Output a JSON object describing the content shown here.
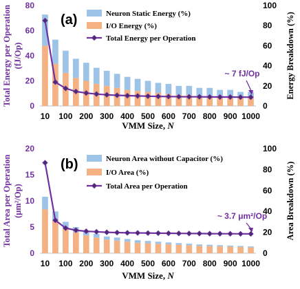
{
  "colors": {
    "bar_top": "#9DC3E6",
    "bar_bottom": "#F4B183",
    "line": "#7030A0",
    "marker": "#4B2C73",
    "left_axis_text": "#7030A0",
    "right_axis_text": "#000000"
  },
  "chart_data": [
    {
      "type": "bar",
      "panel_label": "(a)",
      "x": [
        10,
        50,
        100,
        150,
        200,
        250,
        300,
        350,
        400,
        450,
        500,
        550,
        600,
        650,
        700,
        750,
        800,
        850,
        900,
        950,
        1000
      ],
      "xticks": [
        "10",
        "100",
        "200",
        "300",
        "400",
        "500",
        "600",
        "700",
        "800",
        "900",
        "1000"
      ],
      "xlabel_main": "VMM Size, ",
      "xlabel_var": "N",
      "ylabel_left": "Total Energy per Operation",
      "ylabel_left_unit": "(fJ/Op)",
      "ylim_left": [
        0,
        80
      ],
      "yticks_left": [
        "0",
        "20",
        "40",
        "60",
        "80"
      ],
      "ylabel_right": "Energy Breakdown (%)",
      "ylim_right": [
        0,
        100
      ],
      "yticks_right": [
        "0",
        "20",
        "40",
        "60",
        "80",
        "100"
      ],
      "series": [
        {
          "name": "Neuron Static Energy (%)",
          "kind": "bar-stack-top",
          "values": [
            31,
            24,
            22,
            19,
            18,
            16,
            15,
            14,
            13,
            12,
            11,
            10,
            10,
            9,
            9,
            8,
            8,
            7,
            7,
            6,
            6
          ]
        },
        {
          "name": "I/O Energy (%)",
          "kind": "bar-stack-bottom",
          "values": [
            60,
            42,
            33,
            28,
            25,
            22,
            20,
            18,
            16,
            15,
            14,
            13,
            12,
            11,
            11,
            10,
            10,
            9,
            9,
            8,
            8
          ]
        },
        {
          "name": "Total Energy per Operation",
          "kind": "line",
          "axis": "left",
          "values": [
            68,
            19,
            14,
            11.5,
            10.3,
            9.5,
            8.9,
            8.5,
            8.2,
            8.0,
            7.8,
            7.6,
            7.5,
            7.4,
            7.3,
            7.3,
            7.2,
            7.1,
            7.1,
            7.0,
            7.0
          ]
        }
      ],
      "annotation": "~ 7 fJ/Op"
    },
    {
      "type": "bar",
      "panel_label": "(b)",
      "x": [
        10,
        50,
        100,
        150,
        200,
        250,
        300,
        350,
        400,
        450,
        500,
        550,
        600,
        650,
        700,
        750,
        800,
        850,
        900,
        950,
        1000
      ],
      "xticks": [
        "10",
        "100",
        "200",
        "300",
        "400",
        "500",
        "600",
        "700",
        "800",
        "900",
        "1000"
      ],
      "xlabel_main": "VMM Size, ",
      "xlabel_var": "N",
      "ylabel_left": "Total Area per Operation",
      "ylabel_left_unit": "(μm²/Op)",
      "ylim_left": [
        0,
        20
      ],
      "yticks_left": [
        "0",
        "5",
        "10",
        "15",
        "20"
      ],
      "ylabel_right": "Area Breakdown (%)",
      "ylim_right": [
        0,
        100
      ],
      "yticks_right": [
        "0",
        "20",
        "40",
        "60",
        "80",
        "100"
      ],
      "series": [
        {
          "name": "Neuron Area without Capacitor (%)",
          "kind": "bar-stack-top",
          "values": [
            12,
            9,
            6,
            5,
            4,
            3.5,
            3,
            3,
            2.6,
            2.4,
            2.2,
            2,
            1.8,
            1.7,
            1.6,
            1.4,
            1.3,
            1.2,
            1.1,
            1,
            1
          ]
        },
        {
          "name": "I/O Area (%)",
          "kind": "bar-stack-bottom",
          "values": [
            42,
            31,
            24,
            20,
            17,
            15,
            13,
            12,
            11,
            10,
            9.5,
            9,
            8.5,
            8,
            7.5,
            7,
            6.8,
            6.5,
            6.2,
            6,
            5.5
          ]
        },
        {
          "name": "Total Area per Operation",
          "kind": "line",
          "axis": "left",
          "values": [
            17.3,
            6.3,
            4.8,
            4.4,
            4.2,
            4.1,
            4.0,
            3.95,
            3.9,
            3.88,
            3.85,
            3.83,
            3.81,
            3.79,
            3.77,
            3.76,
            3.74,
            3.73,
            3.72,
            3.71,
            3.7
          ]
        }
      ],
      "annotation": "~ 3.7 μm²/Op"
    }
  ]
}
